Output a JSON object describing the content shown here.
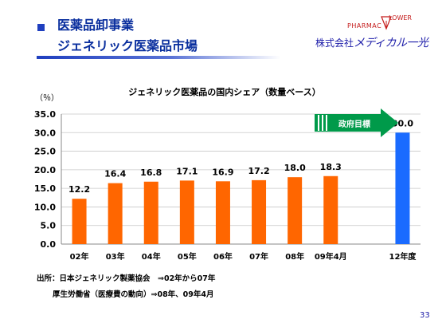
{
  "header": {
    "line1": "医薬品卸事業",
    "line2": "ジェネリック医薬品市場"
  },
  "logo": {
    "pharmac": "PHARMAC",
    "flower": "LOWER",
    "company": "株式会社",
    "brand": "メディカル一光"
  },
  "chart_data": {
    "type": "bar",
    "title": "ジェネリック医薬品の国内シェア（数量ベース）",
    "ylabel": "（％）",
    "categories": [
      "02年",
      "03年",
      "04年",
      "05年",
      "06年",
      "07年",
      "08年",
      "09年4月",
      "",
      "12年度"
    ],
    "values": [
      12.2,
      16.4,
      16.8,
      17.1,
      16.9,
      17.2,
      18.0,
      18.3,
      null,
      30.0
    ],
    "data_labels": [
      "12.2",
      "16.4",
      "16.8",
      "17.1",
      "16.9",
      "17.2",
      "18.0",
      "18.3",
      "",
      "30.0"
    ],
    "ylim": [
      0,
      35
    ],
    "yticks": [
      "0.0",
      "5.0",
      "10.0",
      "15.0",
      "20.0",
      "25.0",
      "30.0",
      "35.0"
    ],
    "colors": [
      "#ff6600",
      "#ff6600",
      "#ff6600",
      "#ff6600",
      "#ff6600",
      "#ff6600",
      "#ff6600",
      "#ff6600",
      "#ffffff",
      "#1a6bff"
    ],
    "grid": true,
    "annotation": "政府目標",
    "annotation_color": "#009a4a"
  },
  "footnotes": {
    "line1": "出所：日本ジェネリック製薬協会　⇒02年から07年",
    "line2": "厚生労働省（医療費の動向）⇒08年、09年4月"
  },
  "page_number": "33"
}
